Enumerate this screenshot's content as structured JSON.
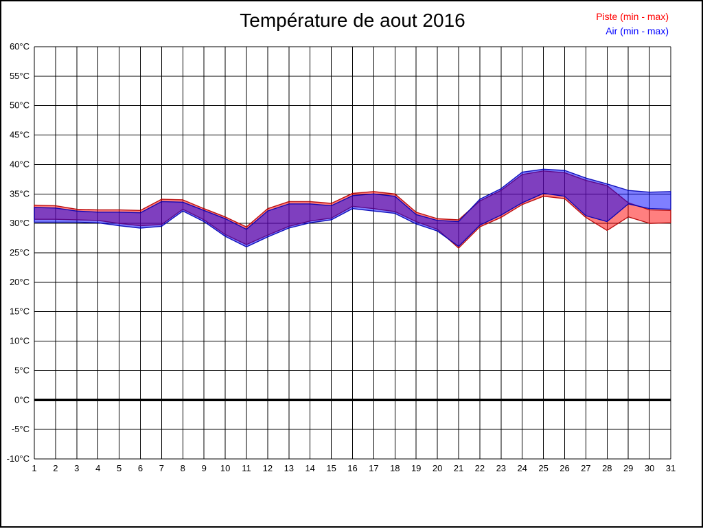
{
  "header": {
    "title": "Température de aout 2016"
  },
  "legend": {
    "position": "top-right",
    "items": [
      {
        "label": "Piste (min - max)",
        "color": "#ff0000"
      },
      {
        "label": "Air (min - max)",
        "color": "#0000ff"
      }
    ]
  },
  "chart_data": {
    "type": "area",
    "subtype": "min-max-band",
    "title": "Température de aout 2016",
    "xlabel": "",
    "ylabel": "",
    "y_unit": "°C",
    "ylim": [
      -10,
      60
    ],
    "ytick_step": 5,
    "grid": true,
    "zero_line_at": 0,
    "legend_position": "top-right",
    "x": [
      1,
      2,
      3,
      4,
      5,
      6,
      7,
      8,
      9,
      10,
      11,
      12,
      13,
      14,
      15,
      16,
      17,
      18,
      19,
      20,
      21,
      22,
      23,
      24,
      25,
      26,
      27,
      28,
      29,
      30,
      31
    ],
    "series": [
      {
        "name": "Piste (min - max)",
        "key": "piste",
        "color": "#ff0000",
        "min": [
          30.7,
          30.7,
          30.6,
          30.5,
          30.0,
          29.6,
          29.8,
          32.4,
          30.6,
          28.1,
          26.4,
          28.0,
          29.5,
          30.4,
          30.9,
          32.9,
          32.5,
          32.0,
          30.3,
          29.0,
          25.8,
          29.4,
          31.0,
          33.2,
          34.6,
          34.2,
          31.0,
          28.8,
          31.1,
          30.0,
          30.1
        ],
        "max": [
          33.1,
          33.0,
          32.4,
          32.3,
          32.3,
          32.2,
          34.1,
          34.0,
          32.5,
          31.1,
          29.4,
          32.5,
          33.7,
          33.7,
          33.4,
          35.1,
          35.4,
          35.0,
          31.9,
          30.8,
          30.6,
          33.8,
          35.6,
          38.3,
          38.9,
          38.6,
          37.3,
          36.4,
          33.5,
          32.3,
          32.2
        ]
      },
      {
        "name": "Air (min - max)",
        "key": "air",
        "color": "#0000ff",
        "min": [
          30.2,
          30.2,
          30.2,
          30.1,
          29.6,
          29.2,
          29.5,
          32.1,
          30.3,
          27.8,
          26.0,
          27.7,
          29.2,
          30.1,
          30.6,
          32.5,
          32.1,
          31.7,
          29.9,
          28.7,
          26.1,
          29.7,
          31.4,
          33.5,
          35.1,
          34.6,
          31.3,
          30.3,
          33.3,
          32.5,
          32.4
        ],
        "max": [
          32.7,
          32.6,
          32.1,
          31.9,
          31.9,
          31.8,
          33.7,
          33.6,
          32.2,
          30.8,
          29.0,
          32.1,
          33.3,
          33.3,
          33.0,
          34.7,
          35.0,
          34.6,
          31.5,
          30.5,
          30.3,
          34.1,
          35.9,
          38.7,
          39.2,
          39.0,
          37.7,
          36.7,
          35.6,
          35.3,
          35.4
        ]
      }
    ]
  }
}
